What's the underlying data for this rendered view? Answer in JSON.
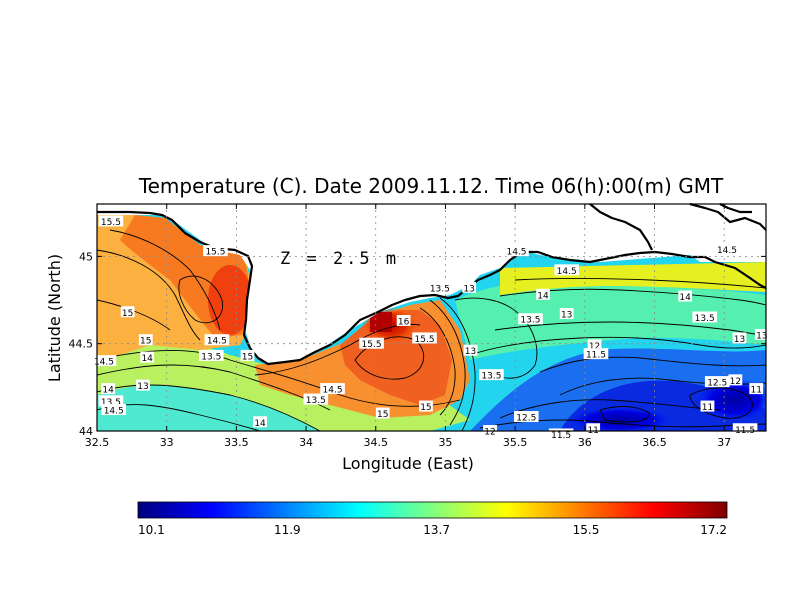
{
  "chart_data": {
    "type": "heatmap",
    "title": "Temperature (C). Date 2009.11.12. Time 06(h):00(m) GMT",
    "xlabel": "Longitude (East)",
    "ylabel": "Latitude (North)",
    "annotation": "Z = 2.5 m",
    "xlim": [
      32.5,
      37.3
    ],
    "ylim": [
      44.0,
      45.3
    ],
    "x_ticks": [
      "32.5",
      "33",
      "33.5",
      "34",
      "34.5",
      "35",
      "35.5",
      "36",
      "36.5",
      "37"
    ],
    "x_tick_values": [
      32.5,
      33,
      33.5,
      34,
      34.5,
      35,
      35.5,
      36,
      36.5,
      37
    ],
    "y_ticks": [
      "44",
      "44.5",
      "45"
    ],
    "y_tick_values": [
      44,
      44.5,
      45
    ],
    "grid": true,
    "colorbar": {
      "min": 10.1,
      "max": 17.2,
      "tick_labels": [
        "10.1",
        "11.9",
        "13.7",
        "15.5",
        "17.2"
      ],
      "tick_values": [
        10.1,
        11.9,
        13.7,
        15.5,
        17.2
      ],
      "colors": [
        "#00007f",
        "#0000ff",
        "#0080ff",
        "#00ffff",
        "#80ff80",
        "#ffff00",
        "#ff8000",
        "#ff0000",
        "#7f0000"
      ]
    },
    "contour_labels": [
      {
        "text": "15.5",
        "lon": 32.6,
        "lat": 45.2
      },
      {
        "text": "15.5",
        "lon": 33.35,
        "lat": 45.03
      },
      {
        "text": "15",
        "lon": 32.72,
        "lat": 44.68
      },
      {
        "text": "15",
        "lon": 32.85,
        "lat": 44.52
      },
      {
        "text": "14",
        "lon": 32.86,
        "lat": 44.42
      },
      {
        "text": "14.5",
        "lon": 32.55,
        "lat": 44.4
      },
      {
        "text": "13.5",
        "lon": 33.32,
        "lat": 44.43
      },
      {
        "text": "14.5",
        "lon": 33.36,
        "lat": 44.52
      },
      {
        "text": "15",
        "lon": 33.58,
        "lat": 44.43
      },
      {
        "text": "13",
        "lon": 32.83,
        "lat": 44.26
      },
      {
        "text": "14",
        "lon": 32.58,
        "lat": 44.24
      },
      {
        "text": "13.5",
        "lon": 32.6,
        "lat": 44.17
      },
      {
        "text": "14.5",
        "lon": 32.62,
        "lat": 44.12
      },
      {
        "text": "14",
        "lon": 33.67,
        "lat": 44.05
      },
      {
        "text": "13.5",
        "lon": 34.07,
        "lat": 44.18
      },
      {
        "text": "14.5",
        "lon": 34.19,
        "lat": 44.24
      },
      {
        "text": "15",
        "lon": 34.55,
        "lat": 44.1
      },
      {
        "text": "15.5",
        "lon": 34.47,
        "lat": 44.5
      },
      {
        "text": "16",
        "lon": 34.7,
        "lat": 44.63
      },
      {
        "text": "15.5",
        "lon": 34.85,
        "lat": 44.53
      },
      {
        "text": "15",
        "lon": 34.86,
        "lat": 44.14
      },
      {
        "text": "13.5",
        "lon": 34.96,
        "lat": 44.82
      },
      {
        "text": "13",
        "lon": 35.17,
        "lat": 44.82
      },
      {
        "text": "13",
        "lon": 35.18,
        "lat": 44.46
      },
      {
        "text": "13.5",
        "lon": 35.33,
        "lat": 44.32
      },
      {
        "text": "13.5",
        "lon": 35.61,
        "lat": 44.64
      },
      {
        "text": "14",
        "lon": 35.7,
        "lat": 44.78
      },
      {
        "text": "13",
        "lon": 35.87,
        "lat": 44.67
      },
      {
        "text": "14.5",
        "lon": 35.51,
        "lat": 45.03
      },
      {
        "text": "14.5",
        "lon": 35.87,
        "lat": 44.92
      },
      {
        "text": "14.5",
        "lon": 37.02,
        "lat": 45.04
      },
      {
        "text": "14",
        "lon": 36.72,
        "lat": 44.77
      },
      {
        "text": "13.5",
        "lon": 36.86,
        "lat": 44.65
      },
      {
        "text": "13",
        "lon": 37.11,
        "lat": 44.53
      },
      {
        "text": "13",
        "lon": 37.27,
        "lat": 44.55
      },
      {
        "text": "12",
        "lon": 36.07,
        "lat": 44.49
      },
      {
        "text": "11.5",
        "lon": 36.08,
        "lat": 44.44
      },
      {
        "text": "12.5",
        "lon": 36.95,
        "lat": 44.28
      },
      {
        "text": "12",
        "lon": 37.08,
        "lat": 44.29
      },
      {
        "text": "11",
        "lon": 37.23,
        "lat": 44.24
      },
      {
        "text": "11",
        "lon": 36.88,
        "lat": 44.14
      },
      {
        "text": "12.5",
        "lon": 35.58,
        "lat": 44.08
      },
      {
        "text": "12",
        "lon": 35.32,
        "lat": 44.0
      },
      {
        "text": "11.5",
        "lon": 35.83,
        "lat": 43.98
      },
      {
        "text": "11",
        "lon": 36.06,
        "lat": 44.01
      },
      {
        "text": "11.5",
        "lon": 37.15,
        "lat": 44.01
      }
    ]
  }
}
